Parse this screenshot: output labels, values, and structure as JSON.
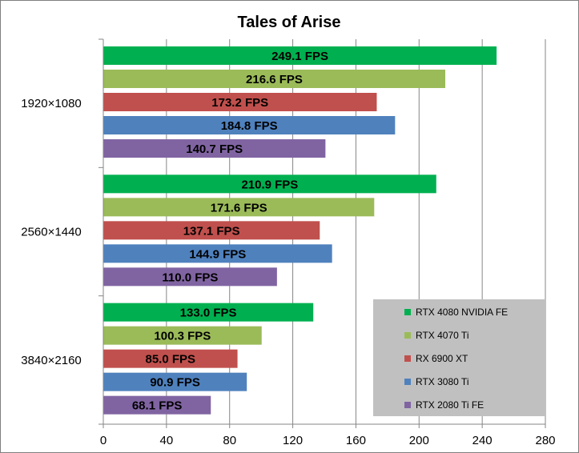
{
  "chart_data": {
    "type": "bar",
    "orientation": "horizontal",
    "title": "Tales of Arise",
    "xlabel": "",
    "ylabel": "",
    "xlim": [
      0,
      280
    ],
    "x_ticks": [
      "0",
      "40",
      "80",
      "120",
      "160",
      "200",
      "240",
      "280"
    ],
    "x_tick_values": [
      0,
      40,
      80,
      120,
      160,
      200,
      240,
      280
    ],
    "categories": [
      "1920×1080",
      "2560×1440",
      "3840×2160"
    ],
    "grid": "vertical",
    "legend_position": "bottom-right",
    "series": [
      {
        "name": "RTX 4080 NVIDIA FE",
        "color": "#00b050",
        "values": [
          249.1,
          210.9,
          133.0
        ],
        "labels": [
          "249.1 FPS",
          "210.9 FPS",
          "133.0 FPS"
        ]
      },
      {
        "name": "RTX 4070 Ti",
        "color": "#9bbb59",
        "values": [
          216.6,
          171.6,
          100.3
        ],
        "labels": [
          "216.6 FPS",
          "171.6 FPS",
          "100.3 FPS"
        ]
      },
      {
        "name": "RX 6900 XT",
        "color": "#c0504d",
        "values": [
          173.2,
          137.1,
          85.0
        ],
        "labels": [
          "173.2 FPS",
          "137.1 FPS",
          "85.0 FPS"
        ]
      },
      {
        "name": "RTX 3080 Ti",
        "color": "#4f81bd",
        "values": [
          184.8,
          144.9,
          90.9
        ],
        "labels": [
          "184.8 FPS",
          "144.9 FPS",
          "90.9 FPS"
        ]
      },
      {
        "name": "RTX 2080 Ti FE",
        "color": "#8064a2",
        "values": [
          140.7,
          110.0,
          68.1
        ],
        "labels": [
          "140.7 FPS",
          "110.0 FPS",
          "68.1 FPS"
        ]
      }
    ],
    "legend_background": "#c0c0c0"
  }
}
